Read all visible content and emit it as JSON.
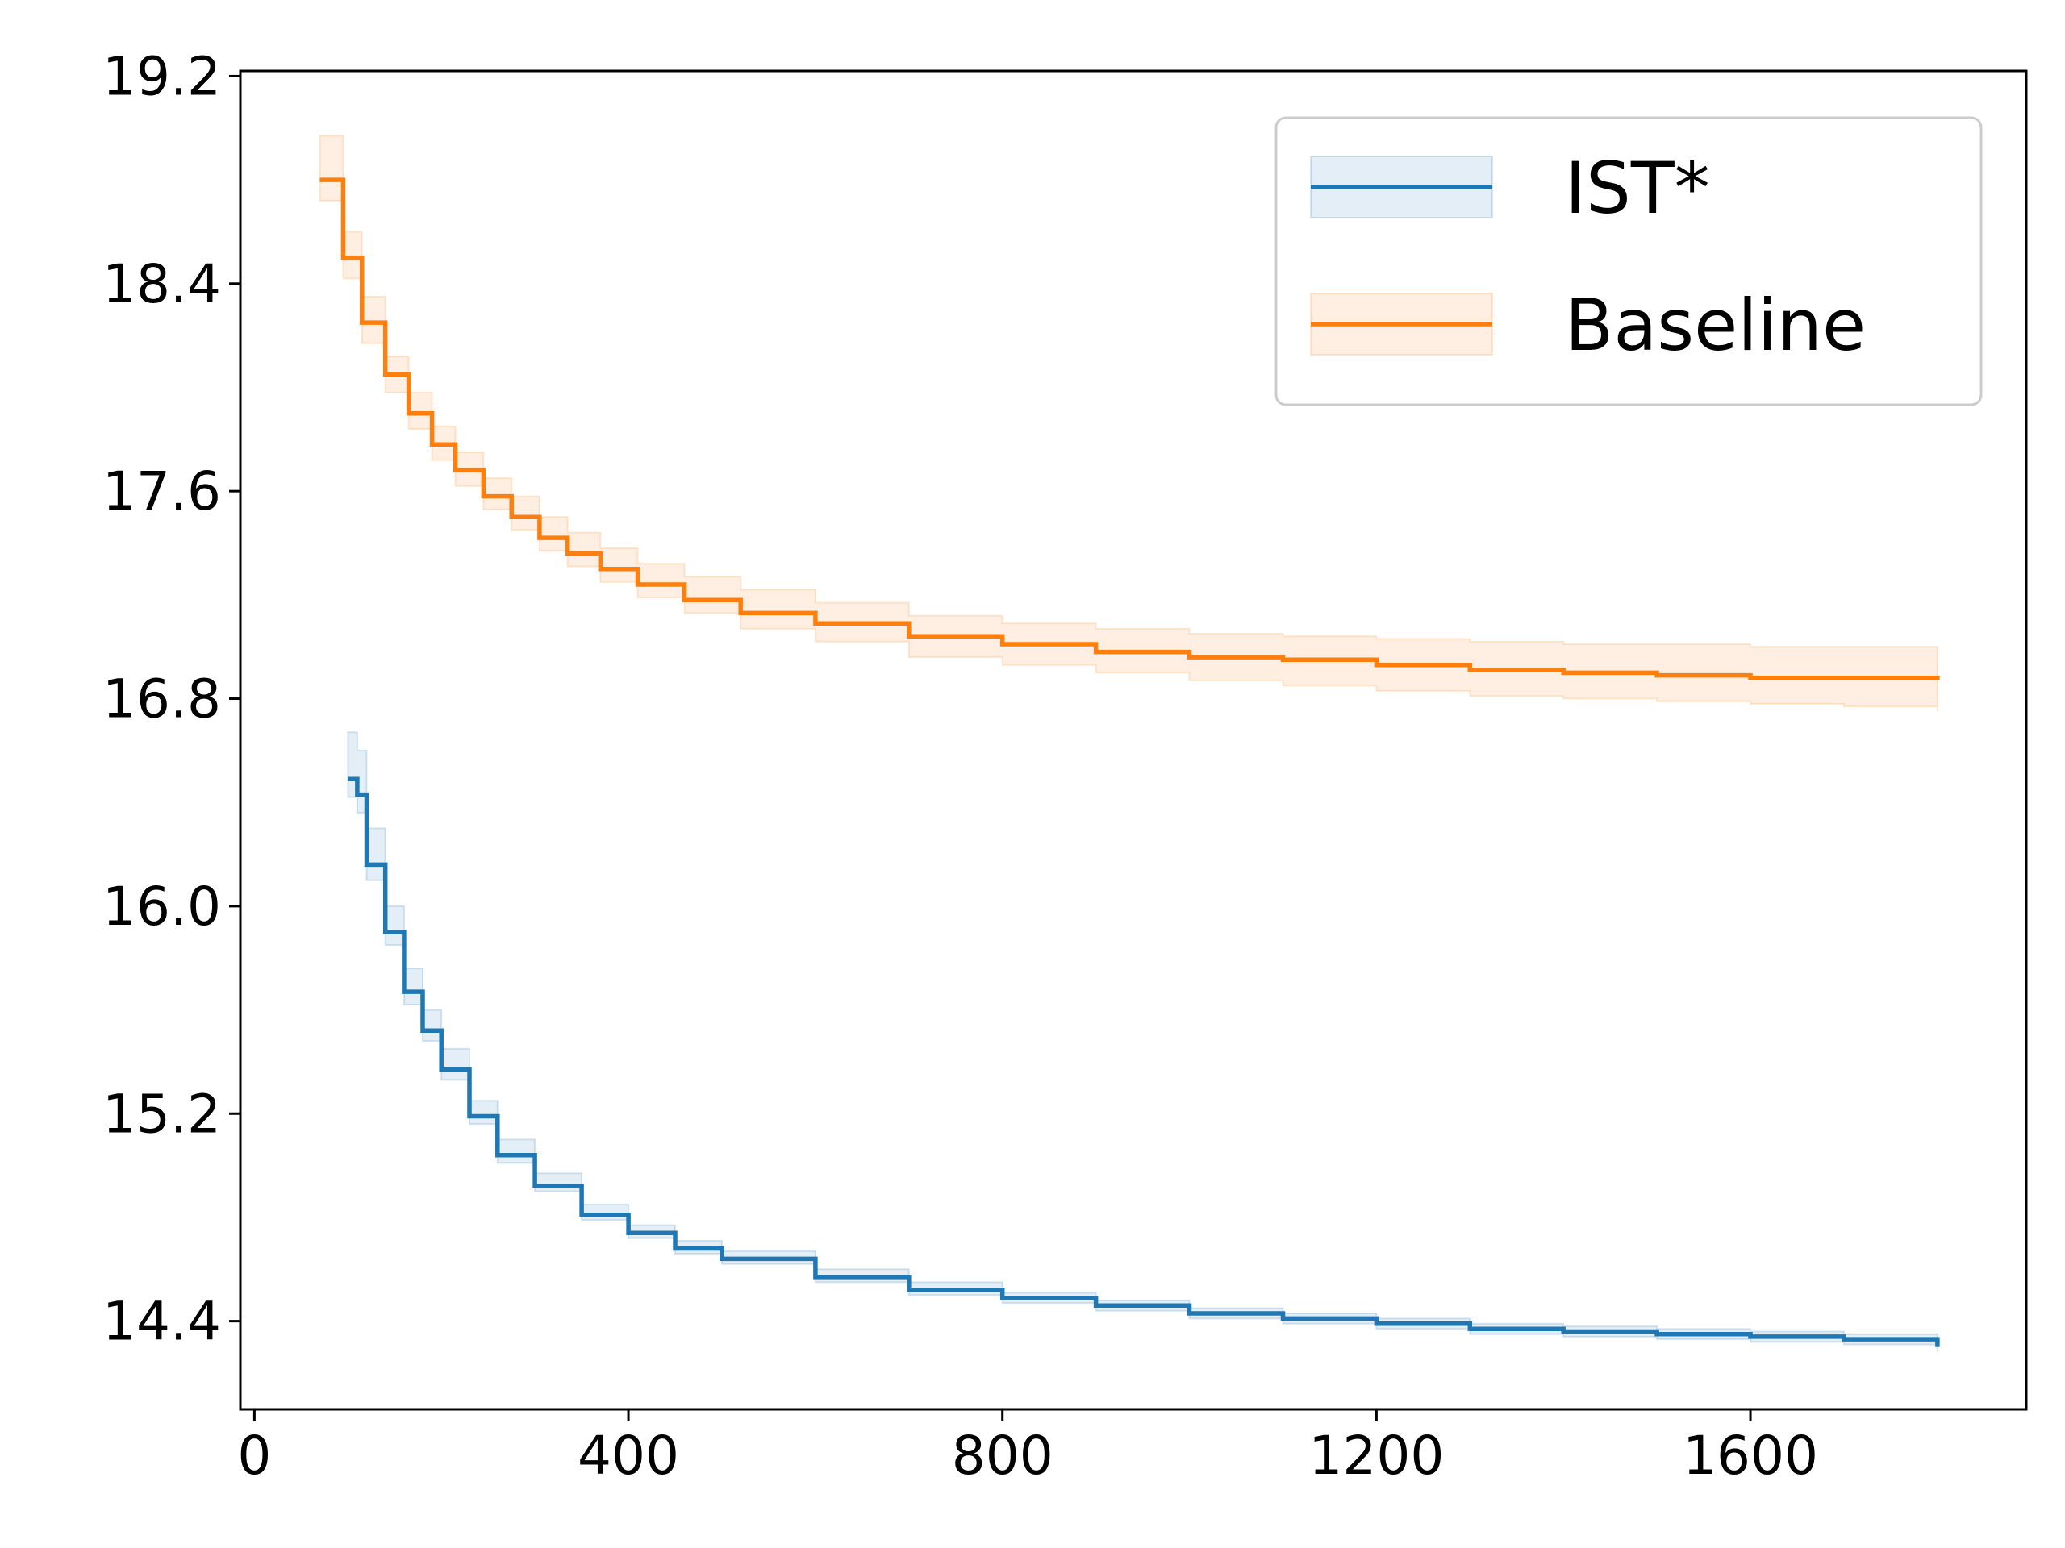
{
  "chart_data": {
    "type": "line",
    "title": "",
    "xlabel": "",
    "ylabel": "",
    "xlim": [
      -15,
      1895
    ],
    "ylim": [
      14.06,
      19.22
    ],
    "xticks": [
      0,
      400,
      800,
      1200,
      1600
    ],
    "xtick_labels": [
      "0",
      "400",
      "800",
      "1200",
      "1600"
    ],
    "yticks": [
      14.4,
      15.2,
      16.0,
      16.8,
      17.6,
      18.4,
      19.2
    ],
    "ytick_labels": [
      "14.4",
      "15.2",
      "16.0",
      "16.8",
      "17.6",
      "18.4",
      "19.2"
    ],
    "grid": false,
    "legend_position": "upper right",
    "series": [
      {
        "name": "IST*",
        "color": "#1f77b4",
        "band_opacity": 0.12,
        "x": [
          100,
          110,
          120,
          140,
          160,
          180,
          200,
          230,
          260,
          300,
          350,
          400,
          450,
          500,
          600,
          700,
          800,
          900,
          1000,
          1100,
          1200,
          1300,
          1400,
          1500,
          1600,
          1700,
          1800
        ],
        "y": [
          16.49,
          16.43,
          16.16,
          15.9,
          15.67,
          15.52,
          15.37,
          15.19,
          15.04,
          14.92,
          14.81,
          14.74,
          14.68,
          14.64,
          14.57,
          14.52,
          14.49,
          14.46,
          14.43,
          14.41,
          14.39,
          14.37,
          14.36,
          14.35,
          14.34,
          14.33,
          14.3
        ],
        "lower": [
          16.42,
          16.36,
          16.1,
          15.85,
          15.62,
          15.48,
          15.33,
          15.16,
          15.01,
          14.9,
          14.79,
          14.72,
          14.66,
          14.62,
          14.55,
          14.5,
          14.47,
          14.44,
          14.41,
          14.39,
          14.37,
          14.35,
          14.34,
          14.33,
          14.32,
          14.31,
          14.28
        ],
        "upper": [
          16.67,
          16.6,
          16.3,
          16.0,
          15.76,
          15.6,
          15.45,
          15.25,
          15.1,
          14.97,
          14.85,
          14.77,
          14.71,
          14.67,
          14.6,
          14.55,
          14.51,
          14.48,
          14.45,
          14.43,
          14.41,
          14.39,
          14.38,
          14.37,
          14.36,
          14.35,
          14.32
        ]
      },
      {
        "name": "Baseline",
        "color": "#ff7f0e",
        "band_opacity": 0.12,
        "x": [
          70,
          95,
          115,
          140,
          165,
          190,
          215,
          245,
          275,
          305,
          335,
          370,
          410,
          460,
          520,
          600,
          700,
          800,
          900,
          1000,
          1100,
          1200,
          1300,
          1400,
          1500,
          1600,
          1700,
          1800
        ],
        "y": [
          18.8,
          18.5,
          18.25,
          18.05,
          17.9,
          17.78,
          17.68,
          17.58,
          17.5,
          17.42,
          17.36,
          17.3,
          17.24,
          17.18,
          17.13,
          17.09,
          17.04,
          17.01,
          16.98,
          16.96,
          16.95,
          16.93,
          16.91,
          16.9,
          16.89,
          16.88,
          16.88,
          16.87
        ],
        "lower": [
          18.72,
          18.42,
          18.17,
          17.98,
          17.84,
          17.72,
          17.62,
          17.53,
          17.45,
          17.37,
          17.31,
          17.25,
          17.19,
          17.13,
          17.07,
          17.02,
          16.96,
          16.93,
          16.9,
          16.87,
          16.85,
          16.83,
          16.81,
          16.8,
          16.79,
          16.78,
          16.77,
          16.75
        ],
        "upper": [
          18.97,
          18.6,
          18.35,
          18.12,
          17.98,
          17.85,
          17.75,
          17.65,
          17.58,
          17.5,
          17.44,
          17.38,
          17.32,
          17.27,
          17.22,
          17.17,
          17.12,
          17.09,
          17.07,
          17.05,
          17.04,
          17.03,
          17.02,
          17.01,
          17.01,
          17.0,
          17.0,
          16.99
        ]
      }
    ]
  }
}
